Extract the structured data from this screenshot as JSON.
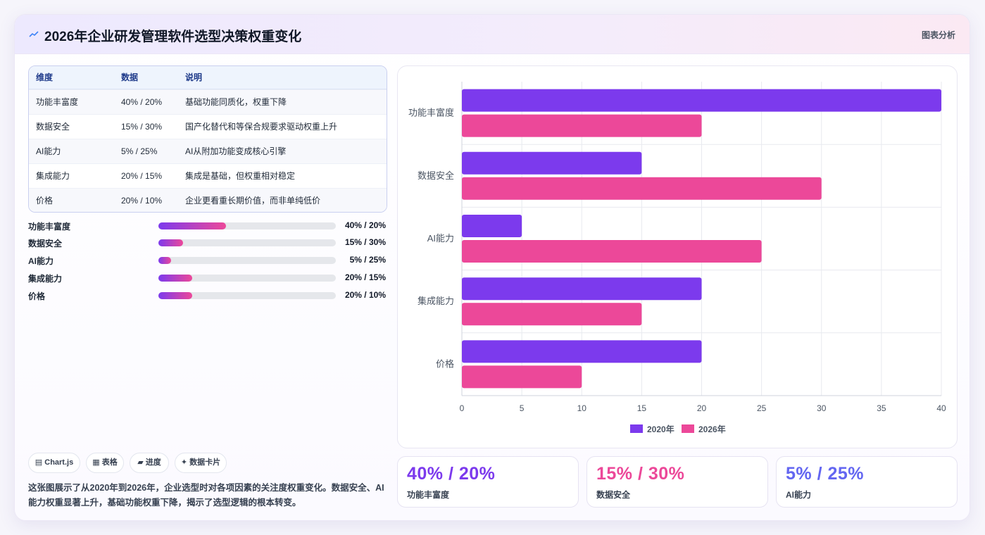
{
  "header": {
    "title": "2026年企业研发管理软件选型决策权重变化",
    "right_label": "图表分析"
  },
  "table": {
    "headers": [
      "维度",
      "数据",
      "说明"
    ],
    "rows": [
      [
        "功能丰富度",
        "40% / 20%",
        "基础功能同质化，权重下降"
      ],
      [
        "数据安全",
        "15% / 30%",
        "国产化替代和等保合规要求驱动权重上升"
      ],
      [
        "AI能力",
        "5% / 25%",
        "AI从附加功能变成核心引擎"
      ],
      [
        "集成能力",
        "20% / 15%",
        "集成是基础，但权重相对稳定"
      ],
      [
        "价格",
        "20% / 10%",
        "企业更看重长期价值，而非单纯低价"
      ]
    ]
  },
  "progress": [
    {
      "label": "功能丰富度",
      "value_text": "40% / 20%",
      "fraction": 0.38
    },
    {
      "label": "数据安全",
      "value_text": "15% / 30%",
      "fraction": 0.14
    },
    {
      "label": "AI能力",
      "value_text": "5% / 25%",
      "fraction": 0.07
    },
    {
      "label": "集成能力",
      "value_text": "20% / 15%",
      "fraction": 0.19
    },
    {
      "label": "价格",
      "value_text": "20% / 10%",
      "fraction": 0.19
    }
  ],
  "tags": [
    {
      "icon": "chart-icon",
      "label": "▤ Chart.js"
    },
    {
      "icon": "table-icon",
      "label": "▦ 表格"
    },
    {
      "icon": "progress-icon",
      "label": "▰ 进度"
    },
    {
      "icon": "sparkle-icon",
      "label": "✦ 数据卡片"
    }
  ],
  "description": "这张图展示了从2020年到2026年，企业选型时对各项因素的关注度权重变化。数据安全、AI能力权重显著上升，基础功能权重下降，揭示了选型逻辑的根本转变。",
  "stats": [
    {
      "value": "40% / 20%",
      "label": "功能丰富度",
      "color": "#7c3aed"
    },
    {
      "value": "15% / 30%",
      "label": "数据安全",
      "color": "#ec4899"
    },
    {
      "value": "5% / 25%",
      "label": "AI能力",
      "color": "#6366f1"
    }
  ],
  "colors": {
    "series_2020": "#7c3aed",
    "series_2026": "#ec4899"
  },
  "chart_data": {
    "type": "bar",
    "orientation": "horizontal",
    "categories": [
      "功能丰富度",
      "数据安全",
      "AI能力",
      "集成能力",
      "价格"
    ],
    "series": [
      {
        "name": "2020年",
        "values": [
          40,
          15,
          5,
          20,
          20
        ],
        "color": "#7c3aed"
      },
      {
        "name": "2026年",
        "values": [
          20,
          30,
          25,
          15,
          10
        ],
        "color": "#ec4899"
      }
    ],
    "xlim": [
      0,
      40
    ],
    "xticks": [
      0,
      5,
      10,
      15,
      20,
      25,
      30,
      35,
      40
    ],
    "grid": true,
    "legend_position": "bottom"
  }
}
